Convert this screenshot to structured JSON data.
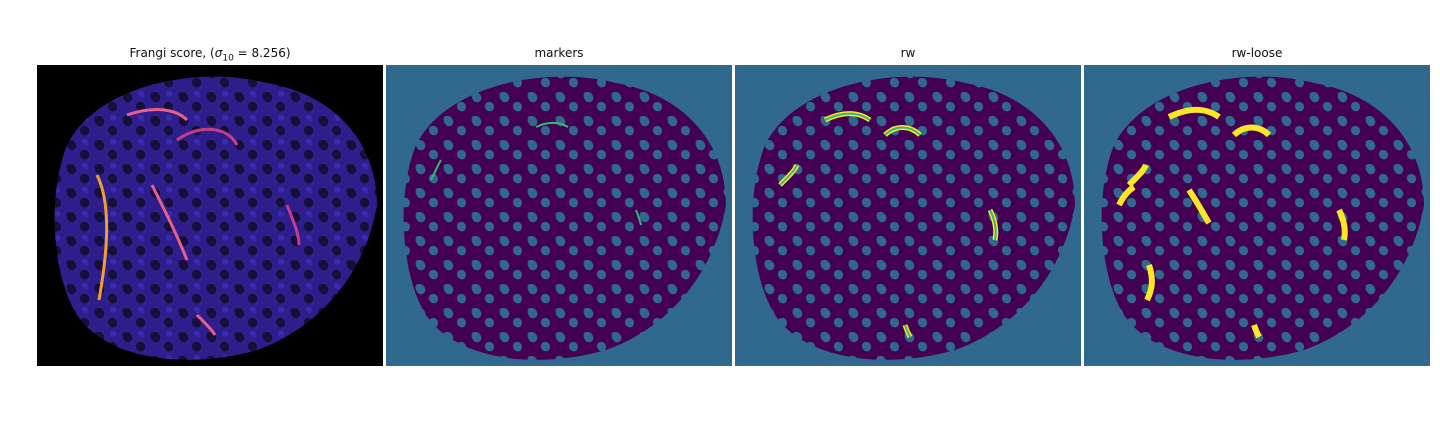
{
  "panels": [
    {
      "title_prefix": "Frangi score, (",
      "title_sigma": "σ",
      "title_sub": "10",
      "title_suffix": " = 8.256)",
      "colormap": "magma",
      "colors": {
        "background": "#000000",
        "tissue": "#2d1e8c",
        "vessel": "#f0a030"
      }
    },
    {
      "title": "markers",
      "colormap": "viridis",
      "colors": {
        "background": "#31688e",
        "tissue": "#440154",
        "marker": "#35b779"
      }
    },
    {
      "title": "rw",
      "colormap": "viridis",
      "colors": {
        "background": "#31688e",
        "tissue": "#440154",
        "edge": "#fde725",
        "fill": "#35b779"
      }
    },
    {
      "title": "rw-loose",
      "colormap": "viridis",
      "colors": {
        "background": "#31688e",
        "tissue": "#440154",
        "segment": "#fde725"
      }
    }
  ]
}
